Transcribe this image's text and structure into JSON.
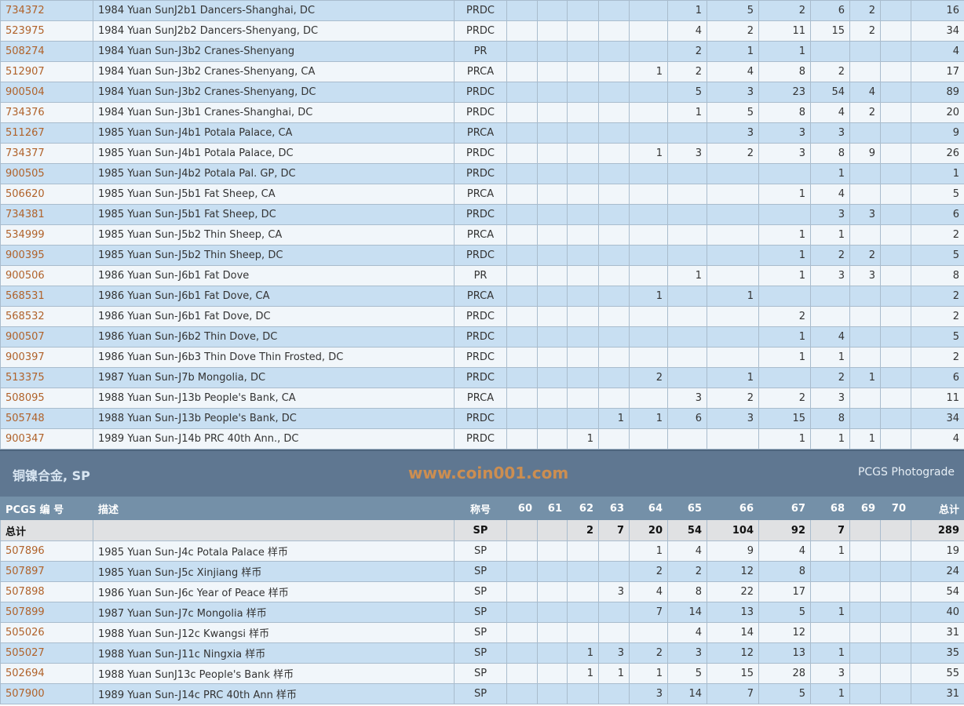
{
  "top_rows": [
    [
      "734372",
      "1984 Yuan SunJ2b1 Dancers-Shanghai, DC",
      "PRDC",
      [
        "",
        "",
        "",
        "",
        "",
        "1",
        "5",
        "2",
        "6",
        "2",
        ""
      ],
      "16"
    ],
    [
      "523975",
      "1984 Yuan SunJ2b2 Dancers-Shenyang, DC",
      "PRDC",
      [
        "",
        "",
        "",
        "",
        "",
        "4",
        "2",
        "11",
        "15",
        "2",
        ""
      ],
      "34"
    ],
    [
      "508274",
      "1984 Yuan Sun-J3b2 Cranes-Shenyang",
      "PR",
      [
        "",
        "",
        "",
        "",
        "",
        "2",
        "1",
        "1",
        "",
        "",
        ""
      ],
      "4"
    ],
    [
      "512907",
      "1984 Yuan Sun-J3b2 Cranes-Shenyang, CA",
      "PRCA",
      [
        "",
        "",
        "",
        "",
        "1",
        "2",
        "4",
        "8",
        "2",
        "",
        ""
      ],
      "17"
    ],
    [
      "900504",
      "1984 Yuan Sun-J3b2 Cranes-Shenyang, DC",
      "PRDC",
      [
        "",
        "",
        "",
        "",
        "",
        "5",
        "3",
        "23",
        "54",
        "4",
        ""
      ],
      "89"
    ],
    [
      "734376",
      "1984 Yuan Sun-J3b1 Cranes-Shanghai, DC",
      "PRDC",
      [
        "",
        "",
        "",
        "",
        "",
        "1",
        "5",
        "8",
        "4",
        "2",
        ""
      ],
      "20"
    ],
    [
      "511267",
      "1985 Yuan Sun-J4b1 Potala Palace, CA",
      "PRCA",
      [
        "",
        "",
        "",
        "",
        "",
        "",
        "3",
        "3",
        "3",
        "",
        ""
      ],
      "9"
    ],
    [
      "734377",
      "1985 Yuan Sun-J4b1 Potala Palace, DC",
      "PRDC",
      [
        "",
        "",
        "",
        "",
        "1",
        "3",
        "2",
        "3",
        "8",
        "9",
        ""
      ],
      "26"
    ],
    [
      "900505",
      "1985 Yuan Sun-J4b2 Potala Pal. GP, DC",
      "PRDC",
      [
        "",
        "",
        "",
        "",
        "",
        "",
        "",
        "",
        "1",
        "",
        ""
      ],
      "1"
    ],
    [
      "506620",
      "1985 Yuan Sun-J5b1 Fat Sheep, CA",
      "PRCA",
      [
        "",
        "",
        "",
        "",
        "",
        "",
        "",
        "1",
        "4",
        "",
        ""
      ],
      "5"
    ],
    [
      "734381",
      "1985 Yuan Sun-J5b1 Fat Sheep, DC",
      "PRDC",
      [
        "",
        "",
        "",
        "",
        "",
        "",
        "",
        "",
        "3",
        "3",
        ""
      ],
      "6"
    ],
    [
      "534999",
      "1985 Yuan Sun-J5b2 Thin Sheep, CA",
      "PRCA",
      [
        "",
        "",
        "",
        "",
        "",
        "",
        "",
        "1",
        "1",
        "",
        ""
      ],
      "2"
    ],
    [
      "900395",
      "1985 Yuan Sun-J5b2 Thin Sheep, DC",
      "PRDC",
      [
        "",
        "",
        "",
        "",
        "",
        "",
        "",
        "1",
        "2",
        "2",
        ""
      ],
      "5"
    ],
    [
      "900506",
      "1986 Yuan Sun-J6b1 Fat Dove",
      "PR",
      [
        "",
        "",
        "",
        "",
        "",
        "1",
        "",
        "1",
        "3",
        "3",
        ""
      ],
      "8"
    ],
    [
      "568531",
      "1986 Yuan Sun-J6b1 Fat Dove, CA",
      "PRCA",
      [
        "",
        "",
        "",
        "",
        "1",
        "",
        "1",
        "",
        "",
        "",
        ""
      ],
      "2"
    ],
    [
      "568532",
      "1986 Yuan Sun-J6b1 Fat Dove, DC",
      "PRDC",
      [
        "",
        "",
        "",
        "",
        "",
        "",
        "",
        "2",
        "",
        "",
        ""
      ],
      "2"
    ],
    [
      "900507",
      "1986 Yuan Sun-J6b2 Thin Dove, DC",
      "PRDC",
      [
        "",
        "",
        "",
        "",
        "",
        "",
        "",
        "1",
        "4",
        "",
        ""
      ],
      "5"
    ],
    [
      "900397",
      "1986 Yuan Sun-J6b3 Thin Dove Thin Frosted, DC",
      "PRDC",
      [
        "",
        "",
        "",
        "",
        "",
        "",
        "",
        "1",
        "1",
        "",
        ""
      ],
      "2"
    ],
    [
      "513375",
      "1987 Yuan Sun-J7b Mongolia, DC",
      "PRDC",
      [
        "",
        "",
        "",
        "",
        "2",
        "",
        "1",
        "",
        "2",
        "1",
        ""
      ],
      "6"
    ],
    [
      "508095",
      "1988 Yuan Sun-J13b People's Bank, CA",
      "PRCA",
      [
        "",
        "",
        "",
        "",
        "",
        "3",
        "2",
        "2",
        "3",
        "",
        ""
      ],
      "11"
    ],
    [
      "505748",
      "1988 Yuan Sun-J13b People's Bank, DC",
      "PRDC",
      [
        "",
        "",
        "",
        "1",
        "1",
        "6",
        "3",
        "15",
        "8",
        "",
        ""
      ],
      "34"
    ],
    [
      "900347",
      "1989 Yuan Sun-J14b PRC 40th Ann., DC",
      "PRDC",
      [
        "",
        "",
        "1",
        "",
        "",
        "",
        "",
        "1",
        "1",
        "1",
        ""
      ],
      "4"
    ]
  ],
  "section": {
    "title": "铜镍合金, SP",
    "photograde_link": "PCGS Photograde"
  },
  "headers": {
    "pcgs_no": "PCGS 编 号",
    "description": "描述",
    "designation": "称号",
    "grades": [
      "60",
      "61",
      "62",
      "63",
      "64",
      "65",
      "66",
      "67",
      "68",
      "69",
      "70"
    ],
    "total": "总计"
  },
  "totals": {
    "label": "总计",
    "designation": "SP",
    "grades": [
      "",
      "",
      "2",
      "7",
      "20",
      "54",
      "104",
      "92",
      "7",
      "",
      ""
    ],
    "total": "289"
  },
  "sp_rows": [
    [
      "507896",
      "1985 Yuan Sun-J4c Potala Palace 样币",
      "SP",
      [
        "",
        "",
        "",
        "",
        "1",
        "4",
        "9",
        "4",
        "1",
        "",
        ""
      ],
      "19"
    ],
    [
      "507897",
      "1985 Yuan Sun-J5c Xinjiang 样币",
      "SP",
      [
        "",
        "",
        "",
        "",
        "2",
        "2",
        "12",
        "8",
        "",
        "",
        ""
      ],
      "24"
    ],
    [
      "507898",
      "1986 Yuan Sun-J6c Year of Peace 样币",
      "SP",
      [
        "",
        "",
        "",
        "3",
        "4",
        "8",
        "22",
        "17",
        "",
        "",
        ""
      ],
      "54"
    ],
    [
      "507899",
      "1987 Yuan Sun-J7c Mongolia 样币",
      "SP",
      [
        "",
        "",
        "",
        "",
        "7",
        "14",
        "13",
        "5",
        "1",
        "",
        ""
      ],
      "40"
    ],
    [
      "505026",
      "1988 Yuan Sun-J12c Kwangsi 样币",
      "SP",
      [
        "",
        "",
        "",
        "",
        "",
        "4",
        "14",
        "12",
        "",
        "",
        ""
      ],
      "31"
    ],
    [
      "505027",
      "1988 Yuan Sun-J11c Ningxia 样币",
      "SP",
      [
        "",
        "",
        "1",
        "3",
        "2",
        "3",
        "12",
        "13",
        "1",
        "",
        ""
      ],
      "35"
    ],
    [
      "502694",
      "1988 Yuan SunJ13c People's Bank 样币",
      "SP",
      [
        "",
        "",
        "1",
        "1",
        "1",
        "5",
        "15",
        "28",
        "3",
        "",
        ""
      ],
      "55"
    ],
    [
      "507900",
      "1989 Yuan Sun-J14c PRC 40th Ann 样币",
      "SP",
      [
        "",
        "",
        "",
        "",
        "3",
        "14",
        "7",
        "5",
        "1",
        "",
        ""
      ],
      "31"
    ]
  ],
  "watermark": "www.coin001.com"
}
